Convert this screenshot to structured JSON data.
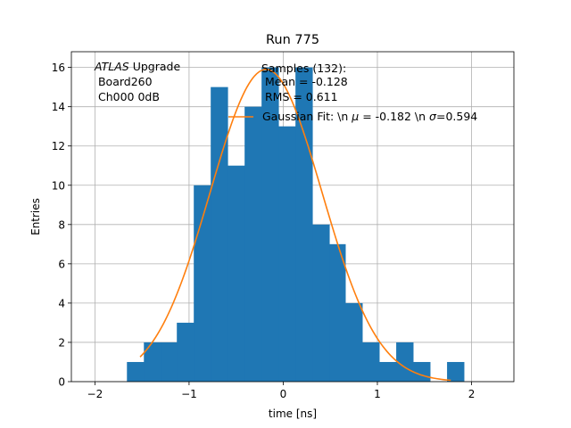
{
  "chart_data": {
    "type": "bar",
    "title": "Run 775",
    "xlabel": "time [ns]",
    "ylabel": "Entries",
    "xlim": [
      -2.25,
      2.45
    ],
    "ylim": [
      0,
      16.8
    ],
    "grid": true,
    "x_ticks": [
      -2,
      -1,
      0,
      1,
      2
    ],
    "y_ticks": [
      0,
      2,
      4,
      6,
      8,
      10,
      12,
      14,
      16
    ],
    "bar_color": "#1f77b4",
    "fit_color": "#ff7f0e",
    "bins": [
      {
        "x0": -1.66,
        "x1": -1.48,
        "count": 1
      },
      {
        "x0": -1.48,
        "x1": -1.3,
        "count": 2
      },
      {
        "x0": -1.3,
        "x1": -1.13,
        "count": 2
      },
      {
        "x0": -1.13,
        "x1": -0.95,
        "count": 3
      },
      {
        "x0": -0.95,
        "x1": -0.77,
        "count": 10
      },
      {
        "x0": -0.77,
        "x1": -0.59,
        "count": 15
      },
      {
        "x0": -0.59,
        "x1": -0.41,
        "count": 11
      },
      {
        "x0": -0.41,
        "x1": -0.23,
        "count": 14
      },
      {
        "x0": -0.23,
        "x1": -0.05,
        "count": 16
      },
      {
        "x0": -0.05,
        "x1": 0.13,
        "count": 13
      },
      {
        "x0": 0.13,
        "x1": 0.31,
        "count": 16
      },
      {
        "x0": 0.31,
        "x1": 0.49,
        "count": 8
      },
      {
        "x0": 0.49,
        "x1": 0.66,
        "count": 7
      },
      {
        "x0": 0.66,
        "x1": 0.84,
        "count": 4
      },
      {
        "x0": 0.84,
        "x1": 1.02,
        "count": 2
      },
      {
        "x0": 1.02,
        "x1": 1.2,
        "count": 1
      },
      {
        "x0": 1.2,
        "x1": 1.38,
        "count": 2
      },
      {
        "x0": 1.38,
        "x1": 1.56,
        "count": 1
      },
      {
        "x0": 1.56,
        "x1": 1.74,
        "count": 0
      },
      {
        "x0": 1.74,
        "x1": 1.92,
        "count": 1
      }
    ],
    "fit": {
      "mu": -0.182,
      "sigma": 0.594,
      "amplitude": 15.9,
      "x_range": [
        -1.52,
        1.78
      ]
    },
    "annotation": {
      "atlas": "ATLAS",
      "upgrade": " Upgrade",
      "board": " Board260",
      "channel": " Ch000 0dB"
    },
    "legend": {
      "samples_header": "Samples (132):",
      "mean": " Mean = -0.128",
      "rms": " RMS = 0.611",
      "fit_prefix": "Gaussian Fit: \\n ",
      "mu_symbol": "μ",
      "fit_mid": " = -0.182 \\n ",
      "sigma_symbol": "σ",
      "fit_suffix": "=0.594"
    }
  }
}
